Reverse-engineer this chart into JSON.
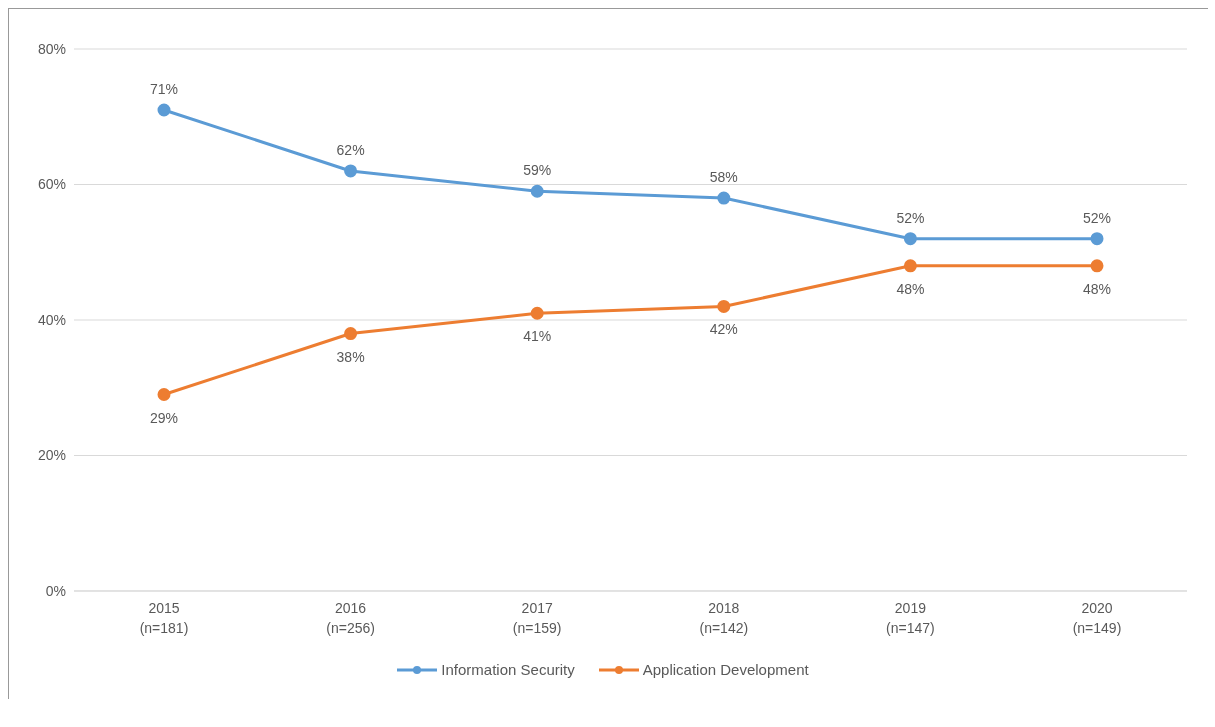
{
  "chart_data": {
    "type": "line",
    "categories": [
      "2015\n(n=181)",
      "2016\n(n=256)",
      "2017\n(n=159)",
      "2018\n(n=142)",
      "2019\n(n=147)",
      "2020\n(n=149)"
    ],
    "series": [
      {
        "name": "Information Security",
        "color": "#5b9bd5",
        "values": [
          71,
          62,
          59,
          58,
          52,
          52
        ],
        "value_labels": [
          "71%",
          "62%",
          "59%",
          "58%",
          "52%",
          "52%"
        ]
      },
      {
        "name": "Application Development",
        "color": "#ed7d31",
        "values": [
          29,
          38,
          41,
          42,
          48,
          48
        ],
        "value_labels": [
          "29%",
          "38%",
          "41%",
          "42%",
          "48%",
          "48%"
        ]
      }
    ],
    "ylim": [
      0,
      80
    ],
    "yticks": [
      {
        "value": 0,
        "label": "0%"
      },
      {
        "value": 20,
        "label": "20%"
      },
      {
        "value": 40,
        "label": "40%"
      },
      {
        "value": 60,
        "label": "60%"
      },
      {
        "value": 80,
        "label": "80%"
      }
    ],
    "grid": "y",
    "legend": "bottom",
    "marker": "circle",
    "line_style": "solid"
  }
}
